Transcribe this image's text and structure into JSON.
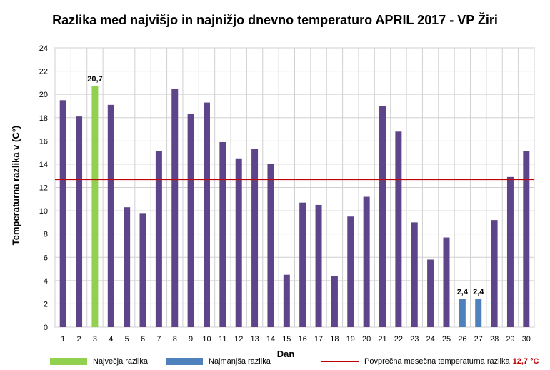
{
  "chart_data": {
    "type": "bar",
    "title": "Razlika med najvišjo in najnižjo dnevno temperaturo APRIL 2017 - VP Žiri",
    "xlabel": "Dan",
    "ylabel": "Temperaturna razlika v (C°)",
    "ylim": [
      0,
      24
    ],
    "yticks": [
      0,
      2,
      4,
      6,
      8,
      10,
      12,
      14,
      16,
      18,
      20,
      22,
      24
    ],
    "grid": true,
    "categories": [
      "1",
      "2",
      "3",
      "4",
      "5",
      "6",
      "7",
      "8",
      "9",
      "10",
      "11",
      "12",
      "13",
      "14",
      "15",
      "16",
      "17",
      "18",
      "19",
      "20",
      "21",
      "22",
      "23",
      "24",
      "25",
      "26",
      "27",
      "28",
      "29",
      "30"
    ],
    "values": [
      19.5,
      18.1,
      20.7,
      19.1,
      10.3,
      9.8,
      15.1,
      20.5,
      18.3,
      19.3,
      15.9,
      14.5,
      15.3,
      14.0,
      4.5,
      10.7,
      10.5,
      4.4,
      9.5,
      11.2,
      19.0,
      16.8,
      9.0,
      5.8,
      7.7,
      2.4,
      2.4,
      9.2,
      12.9,
      15.1
    ],
    "max_days": [
      3
    ],
    "min_days": [
      26,
      27
    ],
    "mean": 12.7,
    "colors": {
      "default": "#5e4589",
      "max": "#92d050",
      "min": "#4f81bd",
      "mean_line": "#c00000",
      "grid": "#d0d0d0"
    },
    "data_labels": [
      {
        "day": 3,
        "text": "20,7"
      },
      {
        "day": 26,
        "text": "2,4"
      },
      {
        "day": 27,
        "text": "2,4"
      }
    ],
    "legend": {
      "position": "bottom",
      "max_label": "Največja razlika",
      "min_label": "Najmanjša razlika",
      "mean_label": "Povprečna mesečna temperaturna razlika",
      "mean_value_text": "12,7 °C"
    }
  }
}
